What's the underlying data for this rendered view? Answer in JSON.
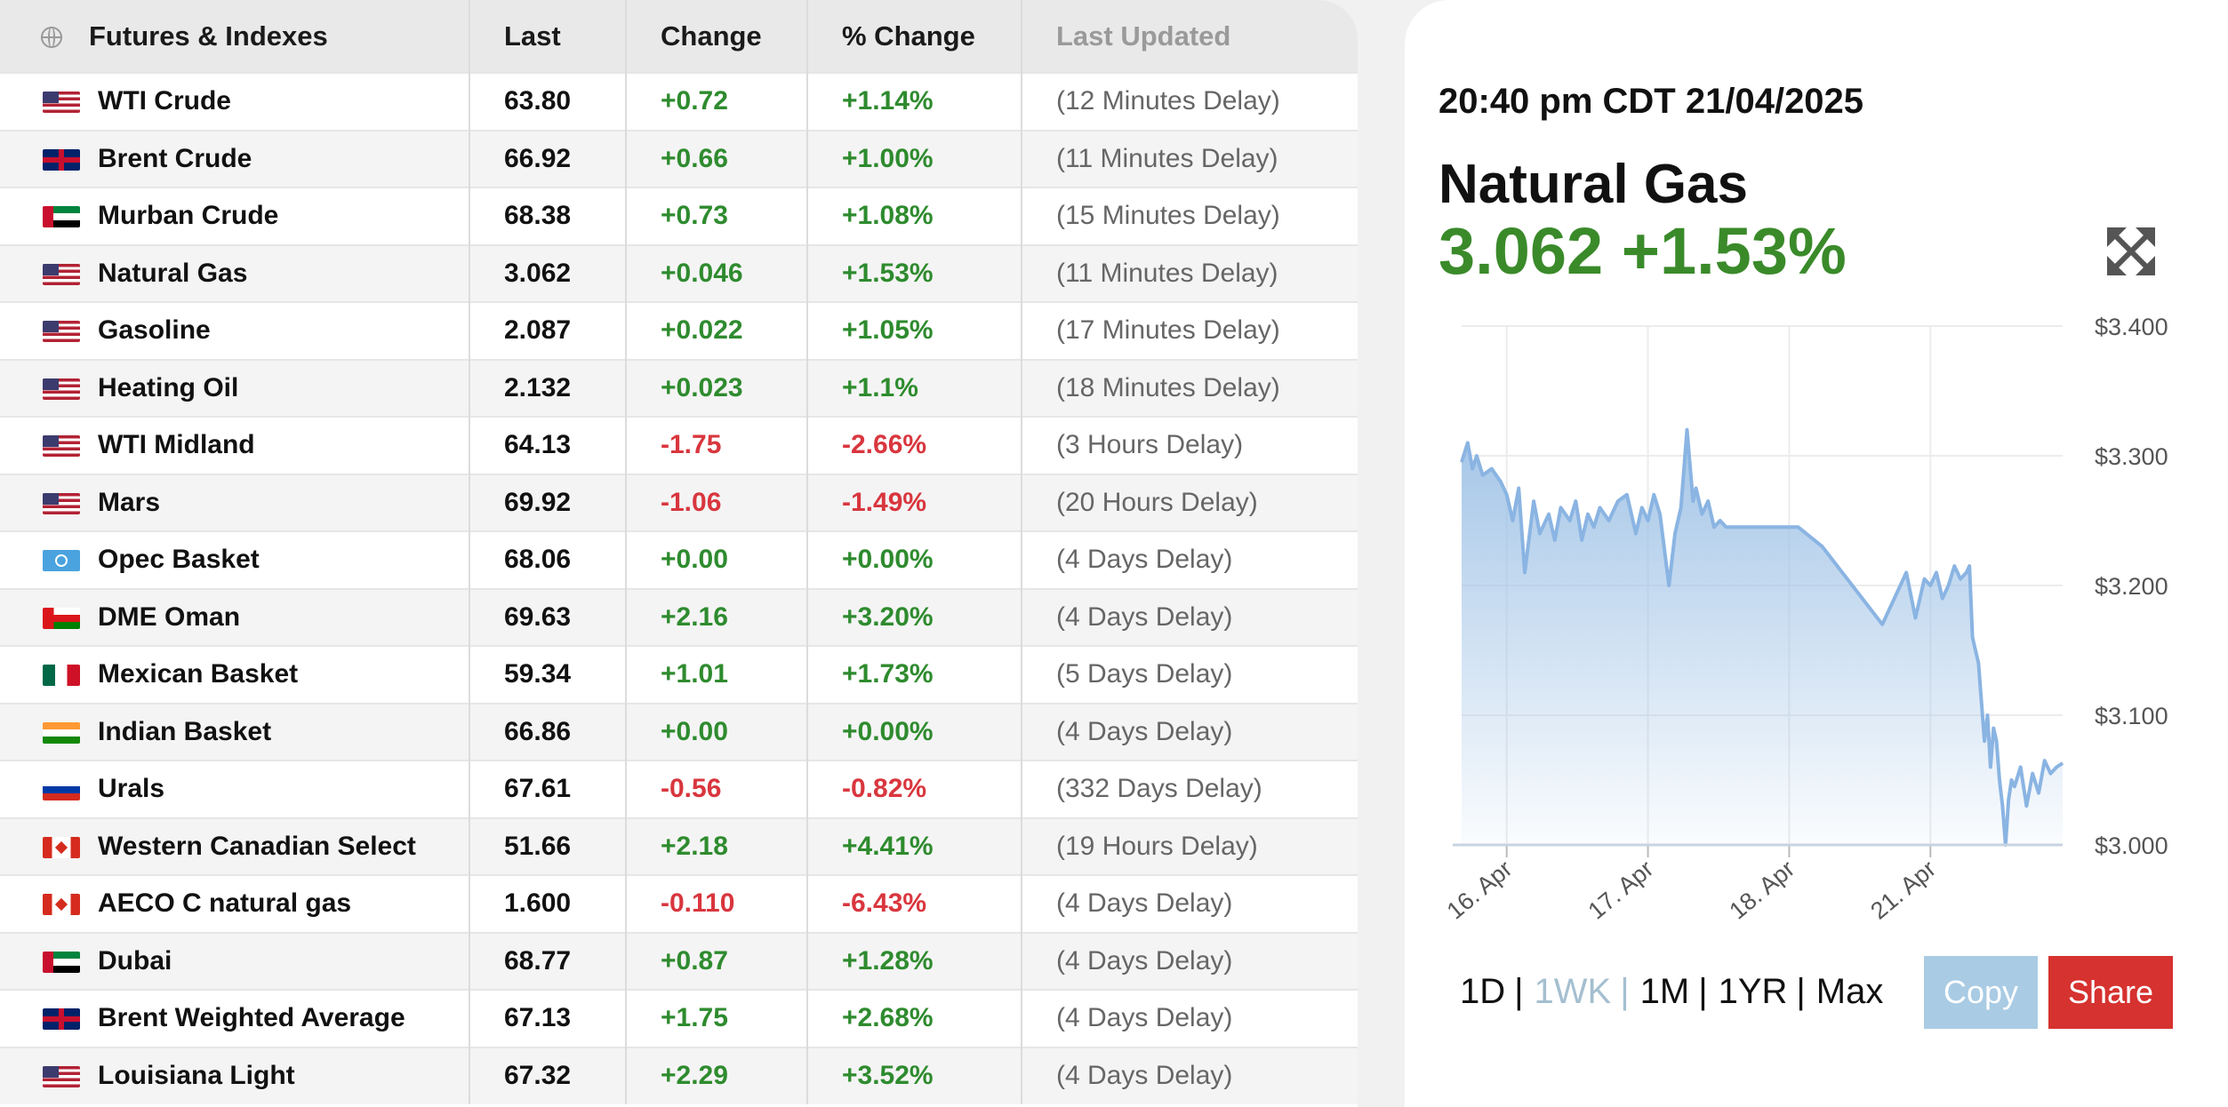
{
  "table": {
    "headers": [
      "Futures & Indexes",
      "Last",
      "Change",
      "% Change",
      "Last Updated"
    ],
    "rows": [
      {
        "flag": "us",
        "name": "WTI Crude",
        "last": "63.80",
        "change": "+0.72",
        "pct": "+1.14%",
        "updated": "(12 Minutes Delay)",
        "dir": "up"
      },
      {
        "flag": "uk",
        "name": "Brent Crude",
        "last": "66.92",
        "change": "+0.66",
        "pct": "+1.00%",
        "updated": "(11 Minutes Delay)",
        "dir": "up"
      },
      {
        "flag": "uae",
        "name": "Murban Crude",
        "last": "68.38",
        "change": "+0.73",
        "pct": "+1.08%",
        "updated": "(15 Minutes Delay)",
        "dir": "up"
      },
      {
        "flag": "us",
        "name": "Natural Gas",
        "last": "3.062",
        "change": "+0.046",
        "pct": "+1.53%",
        "updated": "(11 Minutes Delay)",
        "dir": "up"
      },
      {
        "flag": "us",
        "name": "Gasoline",
        "last": "2.087",
        "change": "+0.022",
        "pct": "+1.05%",
        "updated": "(17 Minutes Delay)",
        "dir": "up"
      },
      {
        "flag": "us",
        "name": "Heating Oil",
        "last": "2.132",
        "change": "+0.023",
        "pct": "+1.1%",
        "updated": "(18 Minutes Delay)",
        "dir": "up"
      },
      {
        "flag": "us",
        "name": "WTI Midland",
        "last": "64.13",
        "change": "-1.75",
        "pct": "-2.66%",
        "updated": "(3 Hours Delay)",
        "dir": "down"
      },
      {
        "flag": "us",
        "name": "Mars",
        "last": "69.92",
        "change": "-1.06",
        "pct": "-1.49%",
        "updated": "(20 Hours Delay)",
        "dir": "down"
      },
      {
        "flag": "opec",
        "name": "Opec Basket",
        "last": "68.06",
        "change": "+0.00",
        "pct": "+0.00%",
        "updated": "(4 Days Delay)",
        "dir": "up"
      },
      {
        "flag": "oman",
        "name": "DME Oman",
        "last": "69.63",
        "change": "+2.16",
        "pct": "+3.20%",
        "updated": "(4 Days Delay)",
        "dir": "up"
      },
      {
        "flag": "mx",
        "name": "Mexican Basket",
        "last": "59.34",
        "change": "+1.01",
        "pct": "+1.73%",
        "updated": "(5 Days Delay)",
        "dir": "up"
      },
      {
        "flag": "in",
        "name": "Indian Basket",
        "last": "66.86",
        "change": "+0.00",
        "pct": "+0.00%",
        "updated": "(4 Days Delay)",
        "dir": "up"
      },
      {
        "flag": "ru",
        "name": "Urals",
        "last": "67.61",
        "change": "-0.56",
        "pct": "-0.82%",
        "updated": "(332 Days Delay)",
        "dir": "down"
      },
      {
        "flag": "ca",
        "name": "Western Canadian Select",
        "last": "51.66",
        "change": "+2.18",
        "pct": "+4.41%",
        "updated": "(19 Hours Delay)",
        "dir": "up"
      },
      {
        "flag": "ca",
        "name": "AECO C natural gas",
        "last": "1.600",
        "change": "-0.110",
        "pct": "-6.43%",
        "updated": "(4 Days Delay)",
        "dir": "down"
      },
      {
        "flag": "uae",
        "name": "Dubai",
        "last": "68.77",
        "change": "+0.87",
        "pct": "+1.28%",
        "updated": "(4 Days Delay)",
        "dir": "up"
      },
      {
        "flag": "uk",
        "name": "Brent Weighted Average",
        "last": "67.13",
        "change": "+1.75",
        "pct": "+2.68%",
        "updated": "(4 Days Delay)",
        "dir": "up"
      },
      {
        "flag": "us",
        "name": "Louisiana Light",
        "last": "67.32",
        "change": "+2.29",
        "pct": "+3.52%",
        "updated": "(4 Days Delay)",
        "dir": "up"
      }
    ]
  },
  "card": {
    "timestamp": "20:40 pm CDT 21/04/2025",
    "symbol": "Natural Gas",
    "price_line": "3.062 +1.53%",
    "ranges": [
      "1D",
      "1WK",
      "1M",
      "1YR",
      "Max"
    ],
    "active_range": "1WK",
    "copy_label": "Copy",
    "share_label": "Share",
    "colors": {
      "up": "#3a8a2a",
      "line": "#8ab4e2",
      "share": "#d6322f",
      "copy": "#a9cbe4"
    }
  },
  "chart_data": {
    "type": "area",
    "ylim": [
      3.0,
      3.4
    ],
    "yticks": [
      "$3.400",
      "$3.300",
      "$3.200",
      "$3.100",
      "$3.000"
    ],
    "xticks": [
      "16. Apr",
      "17. Apr",
      "18. Apr",
      "21. Apr"
    ],
    "xtick_pos": [
      0.075,
      0.31,
      0.545,
      0.78
    ],
    "series": [
      {
        "x": [
          0.0,
          0.01,
          0.018,
          0.025,
          0.035,
          0.05,
          0.065,
          0.075,
          0.085,
          0.095,
          0.105,
          0.12,
          0.13,
          0.145,
          0.155,
          0.165,
          0.18,
          0.19,
          0.2,
          0.21,
          0.22,
          0.23,
          0.245,
          0.26,
          0.275,
          0.29,
          0.3,
          0.31,
          0.32,
          0.33,
          0.345,
          0.355,
          0.365,
          0.375,
          0.385,
          0.39,
          0.4,
          0.41,
          0.42,
          0.43,
          0.44,
          0.45,
          0.46,
          0.47,
          0.48,
          0.5,
          0.53,
          0.56,
          0.6,
          0.65,
          0.7,
          0.74,
          0.755,
          0.77,
          0.78,
          0.79,
          0.8,
          0.81,
          0.82,
          0.83,
          0.84,
          0.845,
          0.85,
          0.86,
          0.865,
          0.87,
          0.875,
          0.88,
          0.885,
          0.89,
          0.895,
          0.9,
          0.905,
          0.91,
          0.915,
          0.92,
          0.93,
          0.94,
          0.95,
          0.96,
          0.97,
          0.98,
          0.99,
          1.0
        ],
        "values": [
          3.295,
          3.31,
          3.29,
          3.3,
          3.285,
          3.29,
          3.28,
          3.27,
          3.25,
          3.275,
          3.21,
          3.265,
          3.24,
          3.255,
          3.235,
          3.26,
          3.25,
          3.265,
          3.235,
          3.255,
          3.245,
          3.26,
          3.25,
          3.265,
          3.27,
          3.24,
          3.26,
          3.25,
          3.27,
          3.255,
          3.2,
          3.24,
          3.26,
          3.32,
          3.265,
          3.275,
          3.255,
          3.265,
          3.245,
          3.25,
          3.245,
          3.245,
          3.245,
          3.245,
          3.245,
          3.245,
          3.245,
          3.245,
          3.23,
          3.2,
          3.17,
          3.21,
          3.175,
          3.205,
          3.2,
          3.21,
          3.19,
          3.2,
          3.215,
          3.205,
          3.21,
          3.215,
          3.16,
          3.14,
          3.11,
          3.08,
          3.1,
          3.06,
          3.09,
          3.08,
          3.05,
          3.03,
          3.0,
          3.035,
          3.05,
          3.045,
          3.06,
          3.03,
          3.055,
          3.04,
          3.065,
          3.055,
          3.06,
          3.063
        ]
      }
    ]
  }
}
